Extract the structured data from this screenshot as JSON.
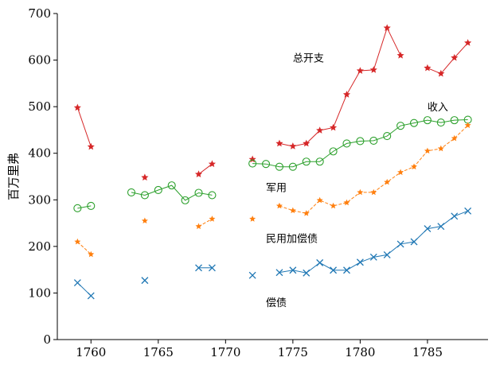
{
  "chart_data": {
    "type": "line",
    "ylabel": "百万里弗",
    "xlim": [
      1757.5,
      1789.5
    ],
    "ylim": [
      0,
      700
    ],
    "x_ticks": [
      1760,
      1765,
      1770,
      1775,
      1780,
      1785
    ],
    "y_ticks": [
      0,
      100,
      200,
      300,
      400,
      500,
      600,
      700
    ],
    "grid": false,
    "series": [
      {
        "key": "total",
        "name": "总开支",
        "color": "#d62728",
        "marker": "star",
        "line": "solid",
        "points": [
          [
            1759,
            498
          ],
          [
            1760,
            414
          ],
          [
            1764,
            348
          ],
          [
            1768,
            355
          ],
          [
            1769,
            377
          ],
          [
            1772,
            387
          ],
          [
            1774,
            421
          ],
          [
            1775,
            415
          ],
          [
            1776,
            421
          ],
          [
            1777,
            449
          ],
          [
            1778,
            455
          ],
          [
            1779,
            526
          ],
          [
            1780,
            577
          ],
          [
            1781,
            579
          ],
          [
            1782,
            669
          ],
          [
            1783,
            610
          ],
          [
            1785,
            583
          ],
          [
            1786,
            571
          ],
          [
            1787,
            605
          ],
          [
            1788,
            637
          ]
        ],
        "segments": [
          [
            1759,
            1760
          ],
          [
            1768,
            1769
          ],
          [
            1774,
            1783
          ],
          [
            1785,
            1788
          ]
        ]
      },
      {
        "key": "military",
        "name": "军用",
        "color": "#2ca02c",
        "marker": "open-circle",
        "line": "solid",
        "points": [
          [
            1759,
            282
          ],
          [
            1760,
            287
          ],
          [
            1763,
            316
          ],
          [
            1764,
            310
          ],
          [
            1765,
            321
          ],
          [
            1766,
            331
          ],
          [
            1767,
            299
          ],
          [
            1768,
            315
          ],
          [
            1769,
            310
          ],
          [
            1772,
            378
          ],
          [
            1773,
            377
          ],
          [
            1774,
            371
          ],
          [
            1775,
            371
          ],
          [
            1776,
            382
          ],
          [
            1777,
            382
          ],
          [
            1778,
            404
          ],
          [
            1779,
            421
          ],
          [
            1780,
            426
          ],
          [
            1781,
            427
          ],
          [
            1782,
            437
          ],
          [
            1783,
            459
          ],
          [
            1784,
            465
          ],
          [
            1785,
            471
          ],
          [
            1786,
            466
          ],
          [
            1787,
            471
          ],
          [
            1788,
            472
          ]
        ],
        "segments": [
          [
            1759,
            1760
          ],
          [
            1763,
            1769
          ],
          [
            1772,
            1788
          ]
        ]
      },
      {
        "key": "civil",
        "name": "民用加偿债",
        "color": "#ff7f0e",
        "marker": "star",
        "line": "dashed",
        "points": [
          [
            1759,
            210
          ],
          [
            1760,
            183
          ],
          [
            1764,
            255
          ],
          [
            1768,
            243
          ],
          [
            1769,
            259
          ],
          [
            1772,
            259
          ],
          [
            1774,
            287
          ],
          [
            1775,
            277
          ],
          [
            1776,
            271
          ],
          [
            1777,
            299
          ],
          [
            1778,
            287
          ],
          [
            1779,
            294
          ],
          [
            1780,
            316
          ],
          [
            1781,
            316
          ],
          [
            1782,
            338
          ],
          [
            1783,
            359
          ],
          [
            1784,
            371
          ],
          [
            1785,
            405
          ],
          [
            1786,
            410
          ],
          [
            1787,
            432
          ],
          [
            1788,
            460
          ]
        ],
        "segments": [
          [
            1759,
            1760
          ],
          [
            1768,
            1769
          ],
          [
            1774,
            1788
          ]
        ]
      },
      {
        "key": "debt",
        "name": "偿债",
        "color": "#1f77b4",
        "marker": "x",
        "line": "solid",
        "points": [
          [
            1759,
            122
          ],
          [
            1760,
            94
          ],
          [
            1764,
            127
          ],
          [
            1768,
            154
          ],
          [
            1769,
            154
          ],
          [
            1772,
            138
          ],
          [
            1774,
            144
          ],
          [
            1775,
            149
          ],
          [
            1776,
            143
          ],
          [
            1777,
            165
          ],
          [
            1778,
            149
          ],
          [
            1779,
            149
          ],
          [
            1780,
            166
          ],
          [
            1781,
            177
          ],
          [
            1782,
            182
          ],
          [
            1783,
            205
          ],
          [
            1784,
            210
          ],
          [
            1785,
            238
          ],
          [
            1786,
            243
          ],
          [
            1787,
            265
          ],
          [
            1788,
            276
          ]
        ],
        "segments": [
          [
            1759,
            1760
          ],
          [
            1768,
            1769
          ],
          [
            1774,
            1788
          ]
        ]
      }
    ],
    "annotations": [
      {
        "text": "总开支",
        "x": 1775,
        "y": 605
      },
      {
        "text": "收入",
        "x": 1785,
        "y": 500
      },
      {
        "text": "军用",
        "x": 1773,
        "y": 327
      },
      {
        "text": "民用加偿债",
        "x": 1773,
        "y": 218
      },
      {
        "text": "偿债",
        "x": 1773,
        "y": 80
      }
    ]
  }
}
